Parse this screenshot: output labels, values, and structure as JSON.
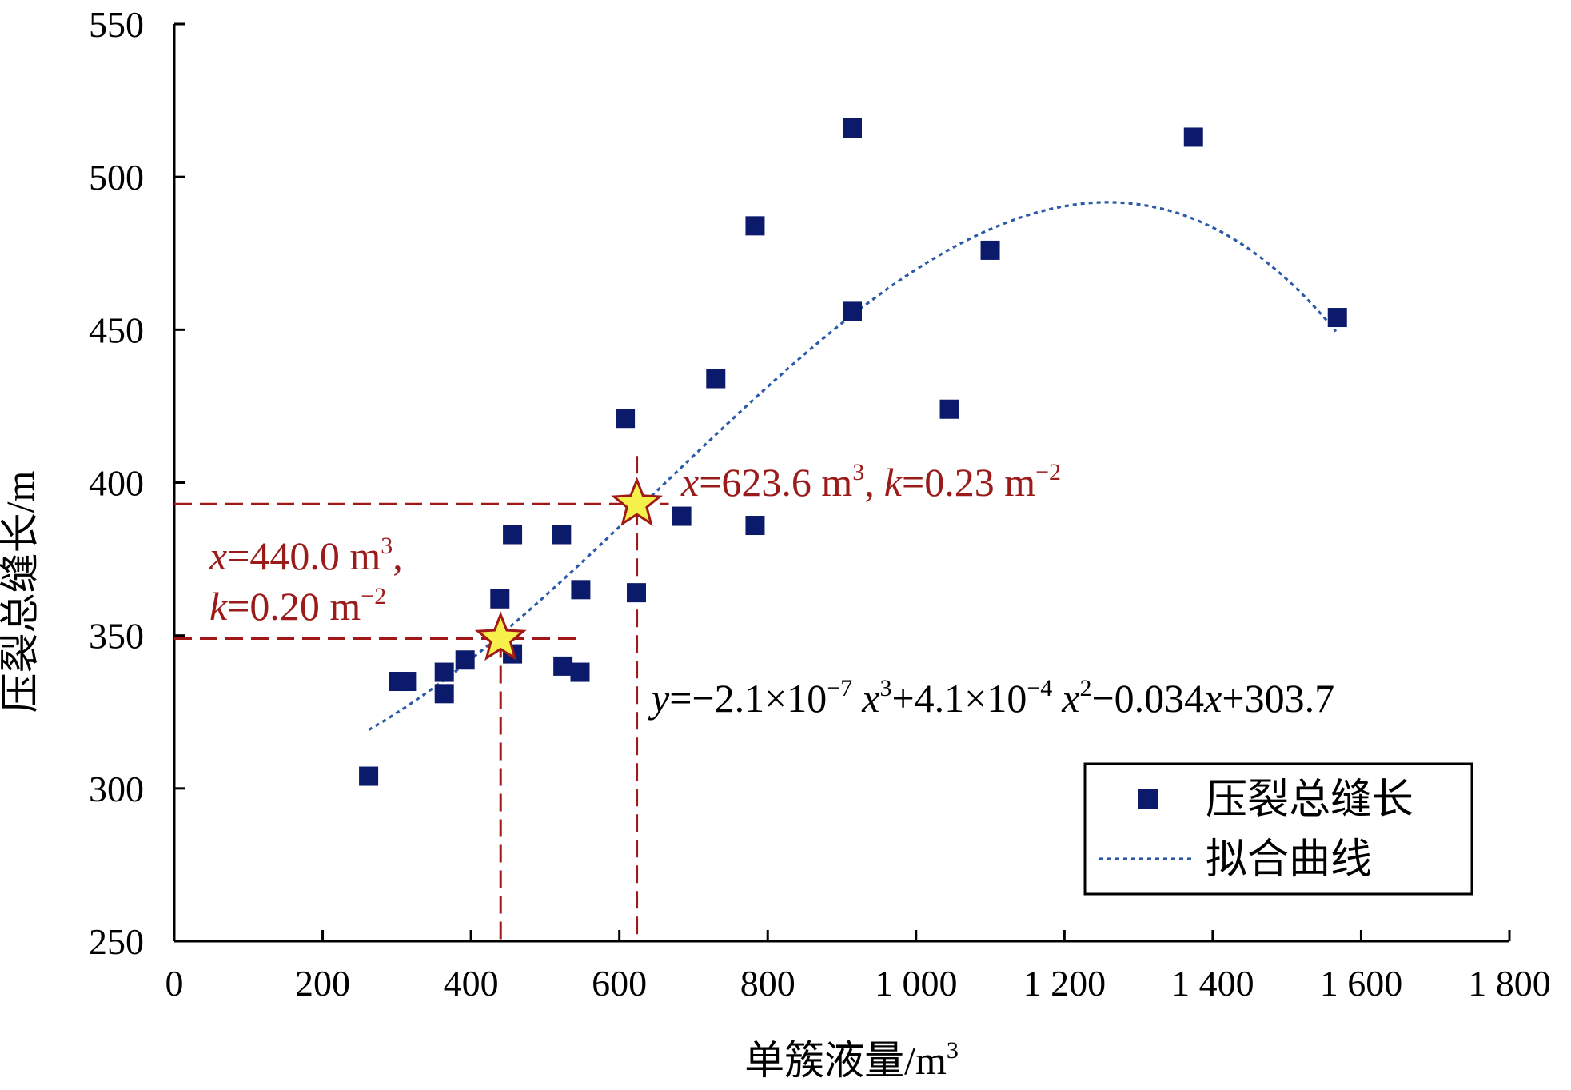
{
  "chart_data": {
    "type": "scatter",
    "xlabel": "单簇液量/m",
    "xlabel_sup": "3",
    "ylabel": "压裂总缝长/m",
    "xlim": [
      0,
      1800
    ],
    "ylim": [
      250,
      550
    ],
    "x_ticks": [
      0,
      200,
      400,
      600,
      800,
      1000,
      1200,
      1400,
      1600,
      1800
    ],
    "x_tick_labels": [
      "0",
      "200",
      "400",
      "600",
      "800",
      "1 000",
      "1 200",
      "1 400",
      "1 600",
      "1 800"
    ],
    "y_ticks": [
      250,
      300,
      350,
      400,
      450,
      500,
      550
    ],
    "y_tick_labels": [
      "250",
      "300",
      "350",
      "400",
      "450",
      "500",
      "550"
    ],
    "grid": false,
    "legend_position": "bottom-right",
    "series": [
      {
        "name": "压裂总缝长",
        "kind": "scatter",
        "color": "#0c1a6b",
        "points": [
          [
            262,
            304
          ],
          [
            302,
            335
          ],
          [
            313,
            335
          ],
          [
            364,
            338
          ],
          [
            364,
            331
          ],
          [
            392,
            342
          ],
          [
            439,
            362
          ],
          [
            456,
            344
          ],
          [
            456,
            383
          ],
          [
            522,
            383
          ],
          [
            524,
            340
          ],
          [
            547,
            338
          ],
          [
            548,
            365
          ],
          [
            608,
            421
          ],
          [
            623,
            364
          ],
          [
            684,
            389
          ],
          [
            730,
            434
          ],
          [
            783,
            484
          ],
          [
            783,
            386
          ],
          [
            914,
            516
          ],
          [
            914,
            456
          ],
          [
            1045,
            424
          ],
          [
            1100,
            476
          ],
          [
            1374,
            513
          ],
          [
            1568,
            454
          ]
        ]
      },
      {
        "name": "拟合曲线",
        "kind": "line",
        "style": "dotted",
        "color": "#2b5ba8",
        "x_range": [
          262,
          1568
        ],
        "coefficients": {
          "a3": -2.1e-07,
          "a2": 0.00041,
          "a1": -0.034,
          "a0": 303.7
        }
      }
    ],
    "markers": [
      {
        "x": 440.0,
        "y": 349
      },
      {
        "x": 623.6,
        "y": 393
      }
    ],
    "marker_color": "#f6f04a",
    "marker_stroke": "#a01818",
    "guide_color": "#a01818",
    "annotations": [
      {
        "var1": "x",
        "text1": "=623.6 m",
        "sup1": "3",
        "sep": ",",
        "var2": "k",
        "text2": "=0.23 m",
        "sup2": "−2"
      },
      {
        "var1": "x",
        "text1": "=440.0 m",
        "sup1": "3",
        "sep": ",",
        "var2": "k",
        "text2": "=0.20 m",
        "sup2": "−2"
      }
    ],
    "equation": {
      "y": "y",
      "eq": "=−2.1×10",
      "e1": "−7",
      "x1": "x",
      "p1": "3",
      "plus1": "+4.1×10",
      "e2": "−4",
      "x2": "x",
      "p2": "2",
      "minus": "−0.034",
      "x3": "x",
      "const": "+303.7"
    }
  }
}
